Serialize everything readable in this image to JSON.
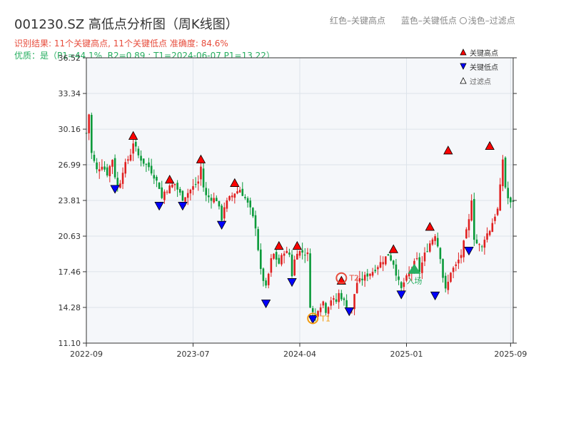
{
  "header": {
    "title": "001230.SZ 高低点分析图（周K线图）",
    "legend_high": "红色–关键高点",
    "legend_low": "蓝色–关键低点",
    "legend_filtered": "浅色–过滤点",
    "result_text": "识别结果: 11个关键高点, 11个关键低点   准确度: 84.6%",
    "quality_text": "优质：是（P1=44.1%, R2=0.89 ; T1=2024-06-07 P1=13.22）"
  },
  "legend": {
    "items": [
      {
        "label": "关键高点",
        "color": "#ff0000",
        "shape": "triangle-up"
      },
      {
        "label": "关键低点",
        "color": "#0000ff",
        "shape": "triangle-down"
      },
      {
        "label": "过滤点",
        "color": "#ffffff",
        "shape": "triangle-up"
      }
    ]
  },
  "colors": {
    "up": "#e02020",
    "down": "#0a9a3a",
    "high": "#ff0000",
    "low": "#0000ff",
    "t2": "#e74c3c",
    "t1": "#f39c12",
    "entry": "#27ae60",
    "plot_bg": "#f5f7fa",
    "grid": "#dde3ea"
  },
  "chart_data": {
    "type": "candlestick",
    "y_ticks": [
      "11.10",
      "14.28",
      "17.46",
      "20.63",
      "23.81",
      "26.99",
      "30.16",
      "33.34",
      "36.52"
    ],
    "ylim": [
      11.1,
      36.52
    ],
    "x_ticks": [
      {
        "label": "2022-09",
        "t": 0
      },
      {
        "label": "2023-07",
        "t": 41
      },
      {
        "label": "2024-04",
        "t": 82
      },
      {
        "label": "2025-01",
        "t": 123
      },
      {
        "label": "2025-09",
        "t": 163
      }
    ],
    "x_range": [
      0,
      164
    ],
    "close_path": [
      [
        0,
        29.8
      ],
      [
        1,
        31.5
      ],
      [
        2,
        28.0
      ],
      [
        4,
        26.5
      ],
      [
        6,
        27.0
      ],
      [
        8,
        26.2
      ],
      [
        10,
        27.5
      ],
      [
        11,
        26.0
      ],
      [
        12,
        25.0
      ],
      [
        13,
        25.5
      ],
      [
        14,
        26.5
      ],
      [
        15,
        27.0
      ],
      [
        17,
        28.0
      ],
      [
        18,
        29.0
      ],
      [
        20,
        27.8
      ],
      [
        22,
        27.2
      ],
      [
        24,
        26.8
      ],
      [
        26,
        26.0
      ],
      [
        28,
        25.0
      ],
      [
        29,
        24.0
      ],
      [
        30,
        24.6
      ],
      [
        32,
        25.0
      ],
      [
        34,
        25.3
      ],
      [
        35,
        24.8
      ],
      [
        37,
        24.0
      ],
      [
        39,
        24.5
      ],
      [
        41,
        25.0
      ],
      [
        43,
        25.5
      ],
      [
        44,
        26.8
      ],
      [
        45,
        25.0
      ],
      [
        46,
        24.2
      ],
      [
        48,
        24.0
      ],
      [
        50,
        23.9
      ],
      [
        52,
        22.2
      ],
      [
        53,
        23.3
      ],
      [
        55,
        24.0
      ],
      [
        57,
        24.5
      ],
      [
        59,
        24.8
      ],
      [
        61,
        24.0
      ],
      [
        63,
        23.0
      ],
      [
        65,
        21.5
      ],
      [
        67,
        17.5
      ],
      [
        69,
        16.0
      ],
      [
        71,
        18.5
      ],
      [
        72,
        19.0
      ],
      [
        74,
        18.2
      ],
      [
        76,
        19.3
      ],
      [
        78,
        19.0
      ],
      [
        79,
        17.2
      ],
      [
        80,
        18.5
      ],
      [
        81,
        19.3
      ],
      [
        83,
        19.2
      ],
      [
        85,
        19.0
      ],
      [
        86,
        14.5
      ],
      [
        87,
        13.8
      ],
      [
        88,
        13.5
      ],
      [
        89,
        14.2
      ],
      [
        90,
        14.5
      ],
      [
        91,
        14.8
      ],
      [
        92,
        14.0
      ],
      [
        94,
        15.0
      ],
      [
        96,
        14.8
      ],
      [
        97,
        15.5
      ],
      [
        98,
        15.2
      ],
      [
        99,
        14.8
      ],
      [
        100,
        14.5
      ],
      [
        101,
        14.2
      ],
      [
        102,
        14.0
      ],
      [
        103,
        15.5
      ],
      [
        104,
        16.5
      ],
      [
        106,
        16.8
      ],
      [
        108,
        17.2
      ],
      [
        110,
        17.5
      ],
      [
        112,
        18.0
      ],
      [
        114,
        18.5
      ],
      [
        116,
        19.0
      ],
      [
        118,
        18.2
      ],
      [
        120,
        16.5
      ],
      [
        121,
        15.9
      ],
      [
        122,
        16.5
      ],
      [
        124,
        17.3
      ],
      [
        126,
        18.2
      ],
      [
        127,
        18.5
      ],
      [
        128,
        17.5
      ],
      [
        130,
        19.0
      ],
      [
        132,
        20.0
      ],
      [
        134,
        20.8
      ],
      [
        136,
        18.8
      ],
      [
        137,
        17.0
      ],
      [
        138,
        15.8
      ],
      [
        139,
        16.5
      ],
      [
        140,
        17.5
      ],
      [
        142,
        18.0
      ],
      [
        144,
        19.0
      ],
      [
        145,
        20.0
      ],
      [
        147,
        22.0
      ],
      [
        148,
        24.0
      ],
      [
        149,
        20.5
      ],
      [
        150,
        20.0
      ],
      [
        152,
        19.6
      ],
      [
        153,
        20.5
      ],
      [
        155,
        21.2
      ],
      [
        157,
        22.5
      ],
      [
        158,
        23.0
      ],
      [
        159,
        25.0
      ],
      [
        160,
        27.5
      ],
      [
        161,
        25.0
      ],
      [
        162,
        24.0
      ],
      [
        163,
        23.5
      ],
      [
        164,
        23.8
      ]
    ],
    "key_highs": [
      {
        "t": 18,
        "price": 29.5
      },
      {
        "t": 32,
        "price": 25.6
      },
      {
        "t": 44,
        "price": 27.4
      },
      {
        "t": 57,
        "price": 25.3
      },
      {
        "t": 74,
        "price": 19.7
      },
      {
        "t": 81,
        "price": 19.7
      },
      {
        "t": 98,
        "price": 16.6
      },
      {
        "t": 118,
        "price": 19.4
      },
      {
        "t": 132,
        "price": 21.4
      },
      {
        "t": 139,
        "price": 28.2
      },
      {
        "t": 155,
        "price": 28.6
      }
    ],
    "key_lows": [
      {
        "t": 11,
        "price": 24.9
      },
      {
        "t": 28,
        "price": 23.4
      },
      {
        "t": 37,
        "price": 23.4
      },
      {
        "t": 52,
        "price": 21.7
      },
      {
        "t": 69,
        "price": 14.7
      },
      {
        "t": 79,
        "price": 16.6
      },
      {
        "t": 87,
        "price": 13.3
      },
      {
        "t": 101,
        "price": 14.0
      },
      {
        "t": 121,
        "price": 15.5
      },
      {
        "t": 134,
        "price": 15.4
      },
      {
        "t": 147,
        "price": 19.4
      }
    ],
    "annotations": [
      {
        "label": "T2",
        "t": 98,
        "price": 16.9,
        "type": "circle-marker"
      },
      {
        "label": "T1",
        "t": 87,
        "price": 13.3,
        "type": "circle-marker"
      },
      {
        "label": "入场",
        "t": 126,
        "price": 17.6,
        "type": "triangle-entry"
      }
    ]
  }
}
